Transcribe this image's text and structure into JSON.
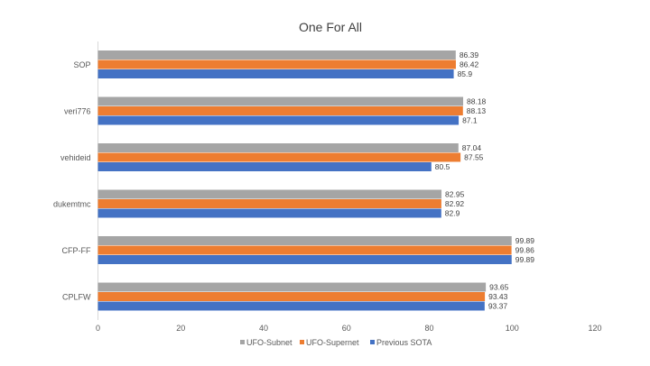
{
  "chart_data": {
    "type": "bar",
    "orientation": "horizontal",
    "title": "One For All",
    "xlabel": "",
    "ylabel": "",
    "xlim": [
      0,
      120
    ],
    "x_ticks": [
      "0",
      "20",
      "40",
      "60",
      "80",
      "100",
      "120"
    ],
    "grid": false,
    "legend_position": "bottom",
    "categories": [
      "SOP",
      "veri776",
      "vehideid",
      "dukemtmc",
      "CFP-FF",
      "CPLFW"
    ],
    "series": [
      {
        "name": "UFO-Subnet",
        "color": "#a5a5a5",
        "values": [
          86.39,
          88.18,
          87.04,
          82.95,
          99.89,
          93.65
        ],
        "labels": [
          "86.39",
          "88.18",
          "87.04",
          "82.95",
          "99.89",
          "93.65"
        ]
      },
      {
        "name": "UFO-Supernet",
        "color": "#ed7d31",
        "values": [
          86.42,
          88.13,
          87.55,
          82.92,
          99.86,
          93.43
        ],
        "labels": [
          "86.42",
          "88.13",
          "87.55",
          "82.92",
          "99.86",
          "93.43"
        ]
      },
      {
        "name": "Previous SOTA",
        "color": "#4472c4",
        "values": [
          85.9,
          87.1,
          80.5,
          82.9,
          99.89,
          93.37
        ],
        "labels": [
          "85.9",
          "87.1",
          "80.5",
          "82.9",
          "99.89",
          "93.37"
        ]
      }
    ]
  }
}
